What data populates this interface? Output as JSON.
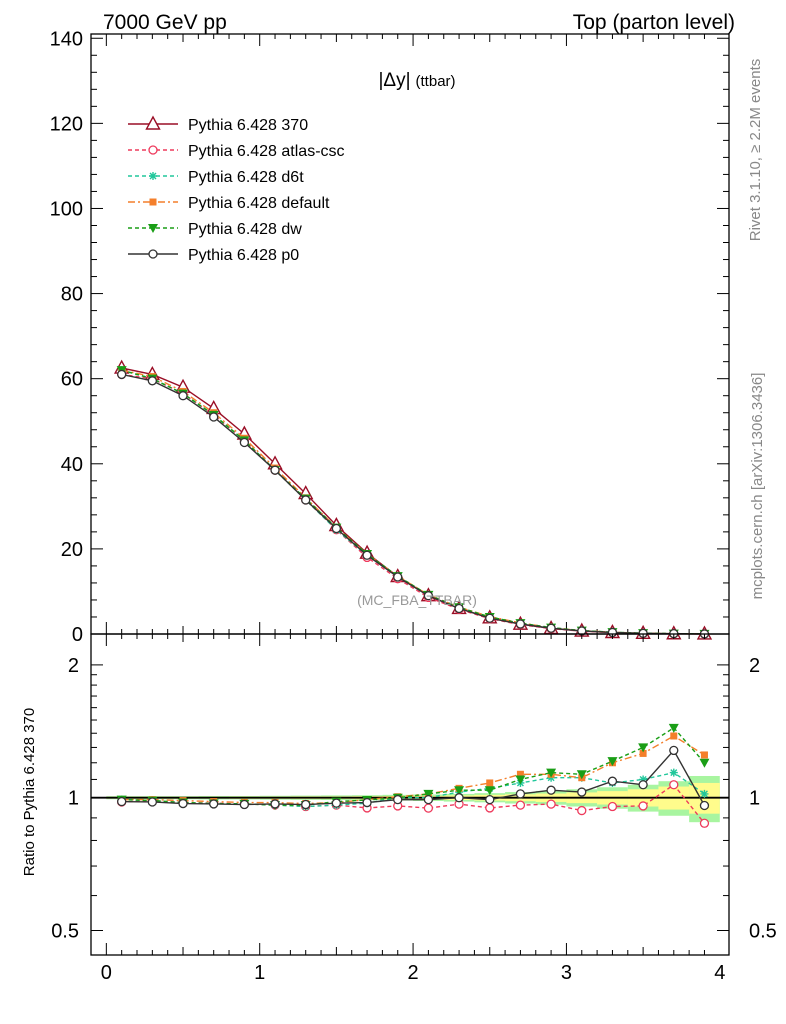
{
  "header": {
    "left": "7000 GeV pp",
    "right": "Top (parton level)"
  },
  "side": {
    "rivet": "Rivet 3.1.10, ≥ 2.2M events",
    "mcplots": "mcplots.cern.ch [arXiv:1306.3436]"
  },
  "colors": {
    "p370": "#9a0e26",
    "atlascsc": "#ee3a5c",
    "d6t": "#21c79b",
    "default": "#f47f2b",
    "dw": "#1a9e16",
    "p0": "#333333",
    "band_inner": "#fffc8c",
    "band_outer": "#a8f5a0"
  },
  "chart_data": [
    {
      "type": "line",
      "panel": "main",
      "title": "|Δy| (ttbar)",
      "watermark": "(MC_FBA_TTBAR)",
      "xlim": [
        -0.1,
        4.06
      ],
      "ylim": [
        0,
        141
      ],
      "yticks": [
        0,
        20,
        40,
        60,
        80,
        100,
        120,
        140
      ],
      "x": [
        0.1,
        0.3,
        0.5,
        0.7,
        0.9,
        1.1,
        1.3,
        1.5,
        1.7,
        1.9,
        2.1,
        2.3,
        2.5,
        2.7,
        2.9,
        3.1,
        3.3,
        3.5,
        3.7,
        3.9
      ],
      "legend_position": "top-left",
      "series": [
        {
          "name": "Pythia 6.428 370",
          "style": "p370",
          "marker": "triangle-open",
          "dash": "",
          "values": [
            62.5,
            61.0,
            58.0,
            53.0,
            47.0,
            40.0,
            33.0,
            25.5,
            19.0,
            13.5,
            9.0,
            6.0,
            3.8,
            2.3,
            1.3,
            0.7,
            0.35,
            0.15,
            0.06,
            0.02
          ]
        },
        {
          "name": "Pythia 6.428 atlas-csc",
          "style": "atlascsc",
          "marker": "circle-open",
          "dash": "4,3",
          "values": [
            61.0,
            60.0,
            56.5,
            51.5,
            45.5,
            38.5,
            31.5,
            24.5,
            18.0,
            13.0,
            8.6,
            5.8,
            3.6,
            2.2,
            1.25,
            0.66,
            0.33,
            0.14,
            0.06,
            0.02
          ]
        },
        {
          "name": "Pythia 6.428 d6t",
          "style": "d6t",
          "marker": "star",
          "dash": "4,3",
          "values": [
            62.0,
            60.0,
            56.5,
            51.5,
            45.5,
            38.5,
            31.5,
            24.5,
            18.5,
            13.5,
            9.0,
            6.2,
            4.0,
            2.5,
            1.45,
            0.78,
            0.38,
            0.17,
            0.07,
            0.02
          ]
        },
        {
          "name": "Pythia 6.428 default",
          "style": "default",
          "marker": "square",
          "dash": "7,3,2,3",
          "values": [
            62.0,
            60.5,
            57.0,
            52.0,
            46.0,
            39.0,
            32.0,
            25.0,
            18.8,
            13.6,
            9.2,
            6.3,
            4.1,
            2.6,
            1.5,
            0.78,
            0.43,
            0.19,
            0.08,
            0.03
          ]
        },
        {
          "name": "Pythia 6.428 dw",
          "style": "dw",
          "marker": "triangle-down",
          "dash": "4,3",
          "values": [
            62.0,
            60.0,
            56.5,
            51.5,
            45.5,
            38.5,
            31.8,
            25.0,
            18.8,
            13.6,
            9.2,
            6.3,
            4.0,
            2.55,
            1.5,
            0.79,
            0.43,
            0.2,
            0.09,
            0.03
          ]
        },
        {
          "name": "Pythia 6.428 p0",
          "style": "p0",
          "marker": "circle-open",
          "dash": "",
          "values": [
            61.0,
            59.5,
            56.0,
            51.0,
            45.0,
            38.5,
            31.5,
            24.8,
            18.5,
            13.4,
            9.0,
            6.0,
            3.7,
            2.35,
            1.35,
            0.72,
            0.37,
            0.16,
            0.08,
            0.02
          ]
        }
      ]
    },
    {
      "type": "line",
      "panel": "ratio",
      "ylabel": "Ratio to Pythia 6.428 370",
      "ylog": true,
      "ylim": [
        0.44,
        2.35
      ],
      "yticks": [
        0.5,
        1,
        2
      ],
      "ytick_labels": [
        "0.5",
        "1",
        "2"
      ],
      "xlim": [
        -0.1,
        4.06
      ],
      "xticks": [
        0,
        1,
        2,
        3,
        4
      ],
      "xtick_labels": [
        "0",
        "1",
        "2",
        "3",
        "4"
      ],
      "x": [
        0.1,
        0.3,
        0.5,
        0.7,
        0.9,
        1.1,
        1.3,
        1.5,
        1.7,
        1.9,
        2.1,
        2.3,
        2.5,
        2.7,
        2.9,
        3.1,
        3.3,
        3.5,
        3.7,
        3.9
      ],
      "reference_band": {
        "inner": [
          0.005,
          0.005,
          0.005,
          0.005,
          0.006,
          0.006,
          0.007,
          0.007,
          0.008,
          0.009,
          0.01,
          0.012,
          0.015,
          0.018,
          0.022,
          0.028,
          0.035,
          0.045,
          0.06,
          0.08
        ],
        "outer": [
          0.008,
          0.008,
          0.008,
          0.009,
          0.009,
          0.01,
          0.011,
          0.012,
          0.013,
          0.015,
          0.017,
          0.02,
          0.024,
          0.03,
          0.036,
          0.045,
          0.056,
          0.07,
          0.09,
          0.12
        ]
      },
      "series": [
        {
          "name": "Pythia 6.428 atlas-csc",
          "style": "atlascsc",
          "marker": "circle-open",
          "dash": "4,3",
          "values": [
            0.978,
            0.984,
            0.975,
            0.972,
            0.968,
            0.963,
            0.955,
            0.962,
            0.948,
            0.958,
            0.947,
            0.967,
            0.948,
            0.962,
            0.967,
            0.935,
            0.955,
            0.958,
            1.07,
            0.875
          ]
        },
        {
          "name": "Pythia 6.428 d6t",
          "style": "d6t",
          "marker": "star",
          "dash": "4,3",
          "values": [
            0.99,
            0.985,
            0.975,
            0.97,
            0.968,
            0.962,
            0.955,
            0.962,
            0.972,
            1.0,
            1.0,
            1.03,
            1.05,
            1.08,
            1.11,
            1.11,
            1.08,
            1.1,
            1.14,
            1.02
          ]
        },
        {
          "name": "Pythia 6.428 default",
          "style": "default",
          "marker": "square",
          "dash": "7,3,2,3",
          "values": [
            0.99,
            0.99,
            0.985,
            0.98,
            0.975,
            0.975,
            0.97,
            0.975,
            0.99,
            1.005,
            1.02,
            1.05,
            1.08,
            1.13,
            1.13,
            1.11,
            1.2,
            1.26,
            1.38,
            1.25
          ]
        },
        {
          "name": "Pythia 6.428 dw",
          "style": "dw",
          "marker": "triangle-down",
          "dash": "4,3",
          "values": [
            0.99,
            0.985,
            0.975,
            0.97,
            0.968,
            0.962,
            0.962,
            0.98,
            0.988,
            1.0,
            1.02,
            1.04,
            1.04,
            1.1,
            1.14,
            1.13,
            1.21,
            1.3,
            1.44,
            1.2
          ]
        },
        {
          "name": "Pythia 6.428 p0",
          "style": "p0",
          "marker": "circle-open",
          "dash": "",
          "values": [
            0.98,
            0.978,
            0.97,
            0.968,
            0.965,
            0.968,
            0.965,
            0.972,
            0.975,
            0.99,
            0.99,
            1.0,
            0.99,
            1.02,
            1.04,
            1.03,
            1.09,
            1.07,
            1.28,
            0.96
          ]
        }
      ]
    }
  ]
}
